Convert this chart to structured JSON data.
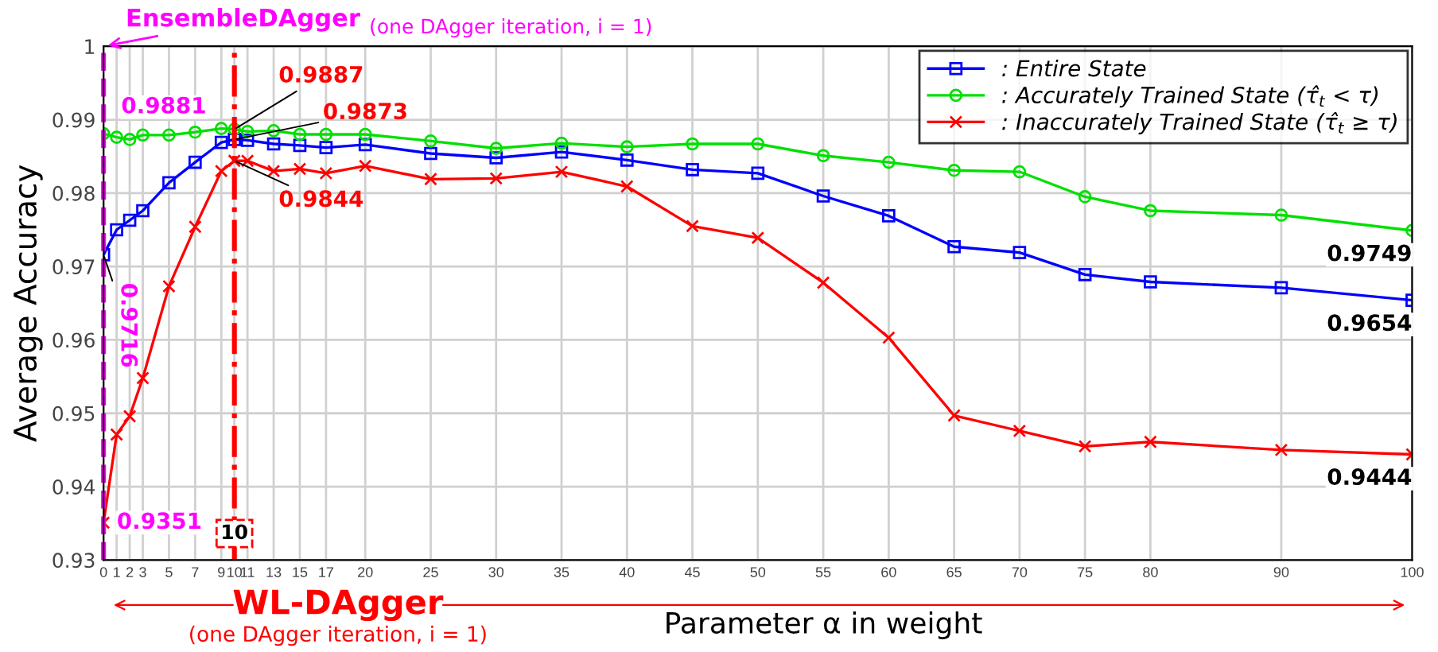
{
  "chart_data": {
    "type": "line",
    "xlabel": "Parameter α in weight",
    "ylabel": "Average Accuracy",
    "x": [
      0,
      1,
      2,
      3,
      5,
      7,
      9,
      10,
      11,
      13,
      15,
      17,
      20,
      25,
      30,
      35,
      40,
      45,
      50,
      55,
      60,
      65,
      70,
      75,
      80,
      90,
      100
    ],
    "series": [
      {
        "name": ": Entire State",
        "color": "#0000ff",
        "marker": "square",
        "values": [
          0.9716,
          0.975,
          0.9763,
          0.9776,
          0.9814,
          0.9842,
          0.9869,
          0.9873,
          0.9872,
          0.9867,
          0.9865,
          0.9862,
          0.9866,
          0.9854,
          0.9848,
          0.9856,
          0.9845,
          0.9832,
          0.9827,
          0.9796,
          0.9769,
          0.9727,
          0.9719,
          0.9689,
          0.9679,
          0.9671,
          0.9654
        ]
      },
      {
        "name": ": Accurately Trained State (τ̂$_{t}$ < τ)",
        "color": "#00e000",
        "marker": "circle",
        "values": [
          0.9881,
          0.9876,
          0.9873,
          0.9879,
          0.9879,
          0.9883,
          0.9888,
          0.9887,
          0.9884,
          0.9885,
          0.988,
          0.988,
          0.988,
          0.9871,
          0.9861,
          0.9868,
          0.9863,
          0.9867,
          0.9867,
          0.9851,
          0.9842,
          0.9831,
          0.9829,
          0.9795,
          0.9776,
          0.977,
          0.9749
        ]
      },
      {
        "name": ": Inaccurately Trained State (τ̂$_{t}$ ≥ τ)",
        "color": "#ff0000",
        "marker": "cross",
        "values": [
          0.9351,
          0.9471,
          0.9496,
          0.9548,
          0.9673,
          0.9754,
          0.983,
          0.9844,
          0.9844,
          0.983,
          0.9833,
          0.9827,
          0.9837,
          0.9819,
          0.982,
          0.9829,
          0.9809,
          0.9755,
          0.9739,
          0.9678,
          0.9603,
          0.9497,
          0.9476,
          0.9455,
          0.9461,
          0.945,
          0.9444
        ]
      }
    ],
    "xlim": [
      0,
      100
    ],
    "xticks": [
      0,
      1,
      2,
      3,
      5,
      7,
      9,
      10,
      11,
      13,
      15,
      17,
      20,
      25,
      30,
      35,
      40,
      45,
      50,
      55,
      60,
      65,
      70,
      75,
      80,
      90,
      100
    ],
    "ylim": [
      0.93,
      1
    ],
    "yticks": [
      0.93,
      0.94,
      0.95,
      0.96,
      0.97,
      0.98,
      0.99,
      1
    ],
    "ref_lines": [
      {
        "axis": "x",
        "value": 0,
        "label": "EnsembleDAgger",
        "color": "#ff00ff",
        "line_style": "dashed"
      },
      {
        "axis": "x",
        "value": 10,
        "label": "10",
        "color": "#ff0000",
        "line_style": "dashdot"
      }
    ],
    "annotations": [
      {
        "text": "0.9881",
        "x": 0,
        "y": 0.9881
      },
      {
        "text": "0.9716",
        "x": 0,
        "y": 0.9716
      },
      {
        "text": "0.9351",
        "x": 0,
        "y": 0.9351
      },
      {
        "text": "0.9887",
        "x": 10,
        "y": 0.9887
      },
      {
        "text": "0.9873",
        "x": 10,
        "y": 0.9873
      },
      {
        "text": "0.9844",
        "x": 10,
        "y": 0.9844
      },
      {
        "text": "0.9749",
        "x": 100,
        "y": 0.9749
      },
      {
        "text": "0.9654",
        "x": 100,
        "y": 0.9654
      },
      {
        "text": "0.9444",
        "x": 100,
        "y": 0.9444
      },
      "(one DAgger iteration, i = 1)",
      "WL-DAgger",
      "(one DAgger iteration, i = 1)"
    ],
    "grid": true,
    "legend": "top right"
  }
}
